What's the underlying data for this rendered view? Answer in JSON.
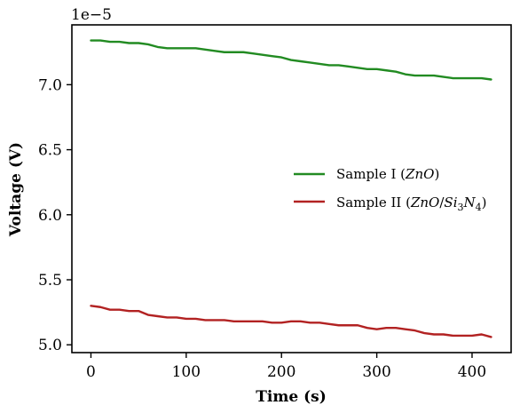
{
  "chart_data": {
    "type": "line",
    "xlabel": "Time (s)",
    "ylabel": "Voltage (V)",
    "offset_label": "1e−5",
    "xlim": [
      -20,
      441
    ],
    "ylim": [
      4.94,
      7.46
    ],
    "xticks": [
      0,
      100,
      200,
      300,
      400
    ],
    "xtick_labels": [
      "0",
      "100",
      "200",
      "300",
      "400"
    ],
    "yticks": [
      5.0,
      5.5,
      6.0,
      6.5,
      7.0
    ],
    "ytick_labels": [
      "5.0",
      "5.5",
      "6.0",
      "6.5",
      "7.0"
    ],
    "grid": false,
    "legend_position": "center-right",
    "series": [
      {
        "name": "Sample I (ZnO)",
        "color": "#228b22",
        "x": [
          0,
          10,
          20,
          30,
          40,
          50,
          60,
          70,
          80,
          90,
          100,
          110,
          120,
          130,
          140,
          150,
          160,
          170,
          180,
          190,
          200,
          210,
          220,
          230,
          240,
          250,
          260,
          270,
          280,
          290,
          300,
          310,
          320,
          330,
          340,
          350,
          360,
          370,
          380,
          390,
          400,
          410,
          420
        ],
        "y": [
          7.34,
          7.34,
          7.33,
          7.33,
          7.32,
          7.32,
          7.31,
          7.29,
          7.28,
          7.28,
          7.28,
          7.28,
          7.27,
          7.26,
          7.25,
          7.25,
          7.25,
          7.24,
          7.23,
          7.22,
          7.21,
          7.19,
          7.18,
          7.17,
          7.16,
          7.15,
          7.15,
          7.14,
          7.13,
          7.12,
          7.12,
          7.11,
          7.1,
          7.08,
          7.07,
          7.07,
          7.07,
          7.06,
          7.05,
          7.05,
          7.05,
          7.05,
          7.04
        ]
      },
      {
        "name": "Sample II (ZnO/Si3N4)",
        "color": "#b22222",
        "x": [
          0,
          10,
          20,
          30,
          40,
          50,
          60,
          70,
          80,
          90,
          100,
          110,
          120,
          130,
          140,
          150,
          160,
          170,
          180,
          190,
          200,
          210,
          220,
          230,
          240,
          250,
          260,
          270,
          280,
          290,
          300,
          310,
          320,
          330,
          340,
          350,
          360,
          370,
          380,
          390,
          400,
          410,
          420
        ],
        "y": [
          5.3,
          5.29,
          5.27,
          5.27,
          5.26,
          5.26,
          5.23,
          5.22,
          5.21,
          5.21,
          5.2,
          5.2,
          5.19,
          5.19,
          5.19,
          5.18,
          5.18,
          5.18,
          5.18,
          5.17,
          5.17,
          5.18,
          5.18,
          5.17,
          5.17,
          5.16,
          5.15,
          5.15,
          5.15,
          5.13,
          5.12,
          5.13,
          5.13,
          5.12,
          5.11,
          5.09,
          5.08,
          5.08,
          5.07,
          5.07,
          5.07,
          5.08,
          5.06
        ]
      }
    ]
  }
}
